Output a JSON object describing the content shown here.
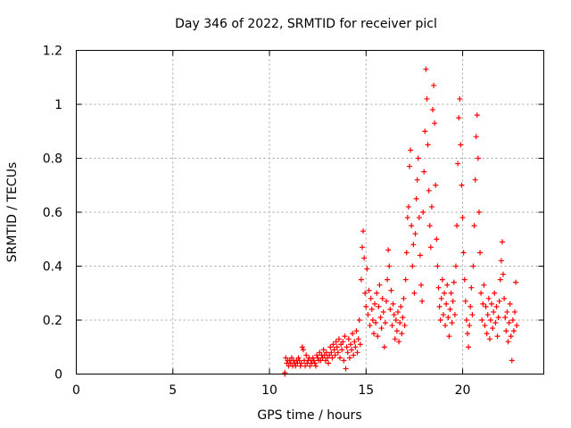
{
  "chart_data": {
    "type": "scatter",
    "title": "Day 346 of 2022, SRMTID for receiver picl",
    "xlabel": "GPS time / hours",
    "ylabel": "SRMTID / TECUs",
    "xlim": [
      0,
      24.2
    ],
    "ylim": [
      0,
      1.2
    ],
    "xticks": [
      0,
      5,
      10,
      15,
      20
    ],
    "xtick_labels": [
      "0",
      "5",
      "10",
      "15",
      "20"
    ],
    "yticks": [
      0,
      0.2,
      0.4,
      0.6,
      0.8,
      1.0,
      1.2
    ],
    "ytick_labels": [
      "0",
      "0.2",
      "0.4",
      "0.6",
      "0.8",
      "1",
      "1.2"
    ],
    "grid": true,
    "marker": "+",
    "color": "#ff0000",
    "series": [
      {
        "name": "SRMTID",
        "points": [
          [
            10.8,
            0.0
          ],
          [
            10.8,
            0.005
          ],
          [
            10.85,
            0.06
          ],
          [
            10.9,
            0.04
          ],
          [
            10.95,
            0.05
          ],
          [
            11.0,
            0.03
          ],
          [
            11.05,
            0.05
          ],
          [
            11.1,
            0.04
          ],
          [
            11.15,
            0.06
          ],
          [
            11.2,
            0.03
          ],
          [
            11.25,
            0.05
          ],
          [
            11.3,
            0.04
          ],
          [
            11.35,
            0.03
          ],
          [
            11.4,
            0.05
          ],
          [
            11.45,
            0.04
          ],
          [
            11.5,
            0.06
          ],
          [
            11.55,
            0.05
          ],
          [
            11.6,
            0.03
          ],
          [
            11.65,
            0.04
          ],
          [
            11.7,
            0.1
          ],
          [
            11.75,
            0.09
          ],
          [
            11.8,
            0.05
          ],
          [
            11.85,
            0.03
          ],
          [
            11.9,
            0.07
          ],
          [
            11.95,
            0.04
          ],
          [
            12.0,
            0.05
          ],
          [
            12.05,
            0.06
          ],
          [
            12.1,
            0.03
          ],
          [
            12.15,
            0.05
          ],
          [
            12.2,
            0.04
          ],
          [
            12.25,
            0.06
          ],
          [
            12.3,
            0.05
          ],
          [
            12.35,
            0.04
          ],
          [
            12.4,
            0.03
          ],
          [
            12.45,
            0.07
          ],
          [
            12.5,
            0.06
          ],
          [
            12.55,
            0.05
          ],
          [
            12.6,
            0.08
          ],
          [
            12.65,
            0.05
          ],
          [
            12.7,
            0.07
          ],
          [
            12.75,
            0.06
          ],
          [
            12.8,
            0.09
          ],
          [
            12.85,
            0.07
          ],
          [
            12.9,
            0.05
          ],
          [
            12.95,
            0.08
          ],
          [
            13.0,
            0.06
          ],
          [
            13.05,
            0.04
          ],
          [
            13.1,
            0.07
          ],
          [
            13.15,
            0.1
          ],
          [
            13.2,
            0.08
          ],
          [
            13.25,
            0.06
          ],
          [
            13.3,
            0.11
          ],
          [
            13.35,
            0.09
          ],
          [
            13.4,
            0.07
          ],
          [
            13.45,
            0.12
          ],
          [
            13.5,
            0.1
          ],
          [
            13.55,
            0.08
          ],
          [
            13.6,
            0.13
          ],
          [
            13.65,
            0.06
          ],
          [
            13.7,
            0.11
          ],
          [
            13.75,
            0.09
          ],
          [
            13.8,
            0.12
          ],
          [
            13.85,
            0.05
          ],
          [
            13.9,
            0.14
          ],
          [
            13.95,
            0.02
          ],
          [
            14.0,
            0.1
          ],
          [
            14.05,
            0.08
          ],
          [
            14.1,
            0.13
          ],
          [
            14.15,
            0.06
          ],
          [
            14.2,
            0.11
          ],
          [
            14.25,
            0.09
          ],
          [
            14.3,
            0.15
          ],
          [
            14.35,
            0.07
          ],
          [
            14.4,
            0.12
          ],
          [
            14.45,
            0.1
          ],
          [
            14.5,
            0.16
          ],
          [
            14.55,
            0.08
          ],
          [
            14.6,
            0.13
          ],
          [
            14.65,
            0.2
          ],
          [
            14.7,
            0.11
          ],
          [
            14.75,
            0.35
          ],
          [
            14.8,
            0.47
          ],
          [
            14.85,
            0.53
          ],
          [
            14.9,
            0.43
          ],
          [
            14.95,
            0.3
          ],
          [
            15.0,
            0.25
          ],
          [
            15.05,
            0.39
          ],
          [
            15.1,
            0.22
          ],
          [
            15.15,
            0.31
          ],
          [
            15.2,
            0.18
          ],
          [
            15.25,
            0.28
          ],
          [
            15.3,
            0.24
          ],
          [
            15.35,
            0.2
          ],
          [
            15.4,
            0.15
          ],
          [
            15.45,
            0.26
          ],
          [
            15.5,
            0.19
          ],
          [
            15.55,
            0.3
          ],
          [
            15.6,
            0.14
          ],
          [
            15.65,
            0.25
          ],
          [
            15.7,
            0.33
          ],
          [
            15.75,
            0.21
          ],
          [
            15.8,
            0.17
          ],
          [
            15.85,
            0.28
          ],
          [
            15.9,
            0.23
          ],
          [
            15.95,
            0.1
          ],
          [
            16.0,
            0.19
          ],
          [
            16.05,
            0.27
          ],
          [
            16.1,
            0.35
          ],
          [
            16.15,
            0.46
          ],
          [
            16.2,
            0.4
          ],
          [
            16.25,
            0.24
          ],
          [
            16.3,
            0.31
          ],
          [
            16.35,
            0.18
          ],
          [
            16.4,
            0.26
          ],
          [
            16.45,
            0.22
          ],
          [
            16.5,
            0.13
          ],
          [
            16.55,
            0.2
          ],
          [
            16.6,
            0.16
          ],
          [
            16.65,
            0.23
          ],
          [
            16.7,
            0.12
          ],
          [
            16.75,
            0.19
          ],
          [
            16.8,
            0.25
          ],
          [
            16.85,
            0.15
          ],
          [
            16.9,
            0.21
          ],
          [
            16.95,
            0.28
          ],
          [
            17.0,
            0.18
          ],
          [
            17.05,
            0.35
          ],
          [
            17.1,
            0.45
          ],
          [
            17.15,
            0.58
          ],
          [
            17.2,
            0.62
          ],
          [
            17.25,
            0.77
          ],
          [
            17.3,
            0.83
          ],
          [
            17.35,
            0.55
          ],
          [
            17.4,
            0.4
          ],
          [
            17.45,
            0.48
          ],
          [
            17.5,
            0.3
          ],
          [
            17.55,
            0.52
          ],
          [
            17.6,
            0.65
          ],
          [
            17.65,
            0.72
          ],
          [
            17.7,
            0.8
          ],
          [
            17.75,
            0.58
          ],
          [
            17.8,
            0.44
          ],
          [
            17.85,
            0.33
          ],
          [
            17.9,
            0.27
          ],
          [
            17.95,
            0.6
          ],
          [
            18.0,
            0.75
          ],
          [
            18.05,
            0.9
          ],
          [
            18.1,
            1.13
          ],
          [
            18.15,
            1.02
          ],
          [
            18.2,
            0.85
          ],
          [
            18.25,
            0.68
          ],
          [
            18.3,
            0.55
          ],
          [
            18.35,
            0.47
          ],
          [
            18.4,
            0.62
          ],
          [
            18.45,
            0.98
          ],
          [
            18.5,
            1.07
          ],
          [
            18.55,
            0.93
          ],
          [
            18.6,
            0.7
          ],
          [
            18.65,
            0.5
          ],
          [
            18.7,
            0.4
          ],
          [
            18.75,
            0.32
          ],
          [
            18.8,
            0.25
          ],
          [
            18.85,
            0.2
          ],
          [
            18.9,
            0.28
          ],
          [
            18.95,
            0.35
          ],
          [
            19.0,
            0.22
          ],
          [
            19.05,
            0.3
          ],
          [
            19.1,
            0.18
          ],
          [
            19.15,
            0.26
          ],
          [
            19.2,
            0.33
          ],
          [
            19.25,
            0.21
          ],
          [
            19.3,
            0.14
          ],
          [
            19.35,
            0.24
          ],
          [
            19.4,
            0.3
          ],
          [
            19.45,
            0.19
          ],
          [
            19.5,
            0.27
          ],
          [
            19.55,
            0.34
          ],
          [
            19.6,
            0.22
          ],
          [
            19.65,
            0.4
          ],
          [
            19.7,
            0.55
          ],
          [
            19.75,
            0.78
          ],
          [
            19.8,
            0.95
          ],
          [
            19.85,
            1.02
          ],
          [
            19.9,
            0.85
          ],
          [
            19.95,
            0.7
          ],
          [
            20.0,
            0.58
          ],
          [
            20.05,
            0.45
          ],
          [
            20.1,
            0.35
          ],
          [
            20.15,
            0.27
          ],
          [
            20.2,
            0.2
          ],
          [
            20.25,
            0.15
          ],
          [
            20.3,
            0.1
          ],
          [
            20.35,
            0.18
          ],
          [
            20.4,
            0.25
          ],
          [
            20.45,
            0.32
          ],
          [
            20.5,
            0.22
          ],
          [
            20.55,
            0.4
          ],
          [
            20.6,
            0.55
          ],
          [
            20.65,
            0.72
          ],
          [
            20.7,
            0.88
          ],
          [
            20.75,
            0.96
          ],
          [
            20.8,
            0.8
          ],
          [
            20.85,
            0.6
          ],
          [
            20.9,
            0.45
          ],
          [
            20.95,
            0.3
          ],
          [
            21.0,
            0.2
          ],
          [
            21.05,
            0.26
          ],
          [
            21.1,
            0.33
          ],
          [
            21.15,
            0.18
          ],
          [
            21.2,
            0.25
          ],
          [
            21.25,
            0.15
          ],
          [
            21.3,
            0.22
          ],
          [
            21.35,
            0.28
          ],
          [
            21.4,
            0.13
          ],
          [
            21.45,
            0.2
          ],
          [
            21.5,
            0.26
          ],
          [
            21.55,
            0.17
          ],
          [
            21.6,
            0.23
          ],
          [
            21.65,
            0.3
          ],
          [
            21.7,
            0.19
          ],
          [
            21.75,
            0.25
          ],
          [
            21.8,
            0.14
          ],
          [
            21.85,
            0.21
          ],
          [
            21.9,
            0.27
          ],
          [
            21.95,
            0.35
          ],
          [
            22.0,
            0.42
          ],
          [
            22.05,
            0.49
          ],
          [
            22.1,
            0.37
          ],
          [
            22.15,
            0.28
          ],
          [
            22.2,
            0.21
          ],
          [
            22.25,
            0.16
          ],
          [
            22.3,
            0.23
          ],
          [
            22.35,
            0.12
          ],
          [
            22.4,
            0.19
          ],
          [
            22.45,
            0.26
          ],
          [
            22.5,
            0.14
          ],
          [
            22.55,
            0.05
          ],
          [
            22.6,
            0.2
          ],
          [
            22.65,
            0.16
          ],
          [
            22.7,
            0.23
          ],
          [
            22.75,
            0.34
          ],
          [
            22.8,
            0.18
          ]
        ]
      }
    ]
  }
}
